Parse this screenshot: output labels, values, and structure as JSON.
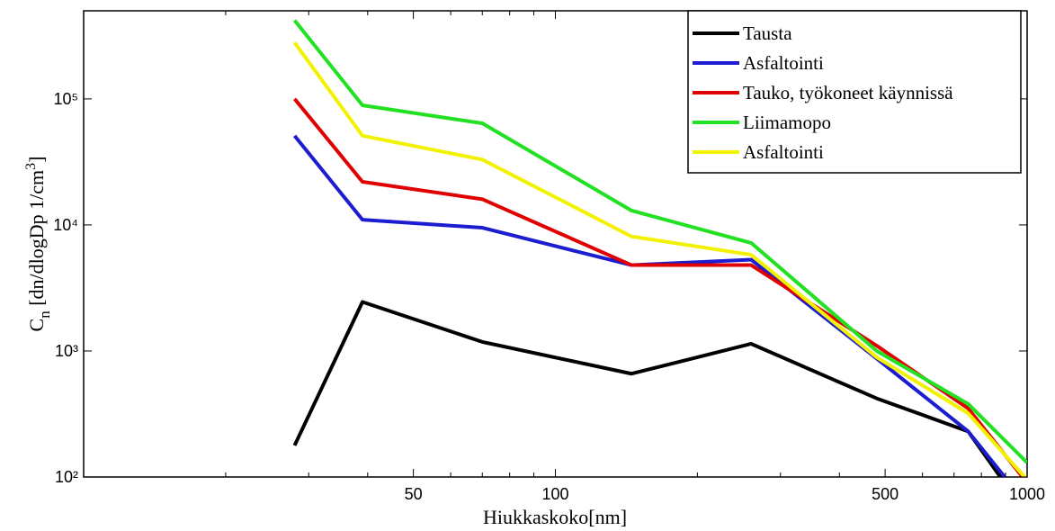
{
  "chart_data": {
    "type": "line",
    "xlabel": "Hiukkaskoko[nm]",
    "ylabel_parts": [
      "C",
      "n",
      " [dn/dlogDp 1/cm",
      "3",
      "]"
    ],
    "x": [
      28,
      39,
      70,
      145,
      260,
      480,
      750,
      1000
    ],
    "series": [
      {
        "name": "Tausta",
        "color": "#000000",
        "values": [
          178,
          2450,
          1180,
          660,
          1140,
          420,
          230,
          50
        ]
      },
      {
        "name": "Asfaltointi",
        "color": "#1c1cd0",
        "values": [
          51000,
          11000,
          9500,
          4800,
          5300,
          870,
          230,
          60
        ]
      },
      {
        "name": "Tauko, työkoneet käynnissä",
        "color": "#e00000",
        "values": [
          100000,
          22000,
          16000,
          4800,
          4800,
          1100,
          350,
          90
        ]
      },
      {
        "name": "Liimamopo",
        "color": "#22e022",
        "values": [
          420000,
          89000,
          64000,
          13000,
          7200,
          1000,
          380,
          130
        ]
      },
      {
        "name": "Asfaltointi",
        "color": "#f2f200",
        "values": [
          280000,
          51000,
          33000,
          8100,
          5800,
          890,
          320,
          95
        ]
      }
    ],
    "xscale": "log",
    "yscale": "log",
    "xlim": [
      10,
      1000
    ],
    "ylim": [
      100,
      500000
    ],
    "xticks": [
      50,
      100,
      500,
      1000
    ],
    "xminorticks": [
      20,
      30,
      40,
      60,
      70,
      80,
      90,
      200,
      300,
      400,
      600,
      700,
      800,
      900
    ],
    "yticks": [
      {
        "value": 100,
        "label": "10²"
      },
      {
        "value": 1000,
        "label": "10³"
      },
      {
        "value": 10000,
        "label": "10⁴"
      },
      {
        "value": 100000,
        "label": "10⁵"
      }
    ],
    "legend": "northeast"
  }
}
